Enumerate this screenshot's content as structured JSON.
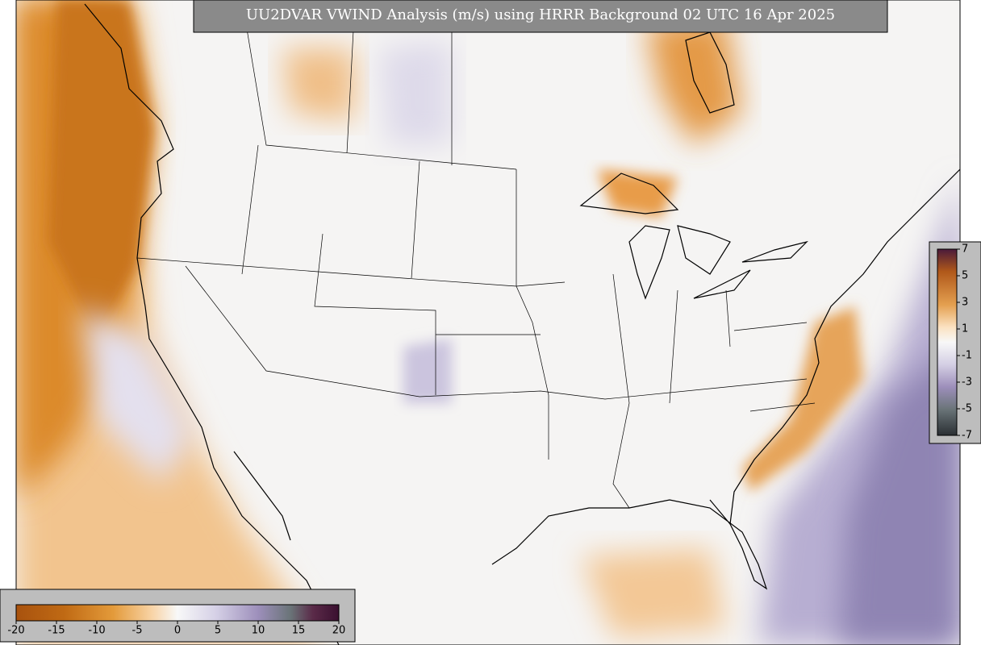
{
  "title": "UU2DVAR VWIND Analysis (m/s) using HRRR Background 02 UTC 16 Apr 2025",
  "colorbars": [
    {
      "ticks": [
        -20,
        -15,
        -10,
        -5,
        0,
        5,
        10,
        15,
        20
      ]
    },
    {
      "ticks": [
        7,
        5,
        3,
        1,
        -1,
        -3,
        -5,
        -7
      ]
    }
  ]
}
